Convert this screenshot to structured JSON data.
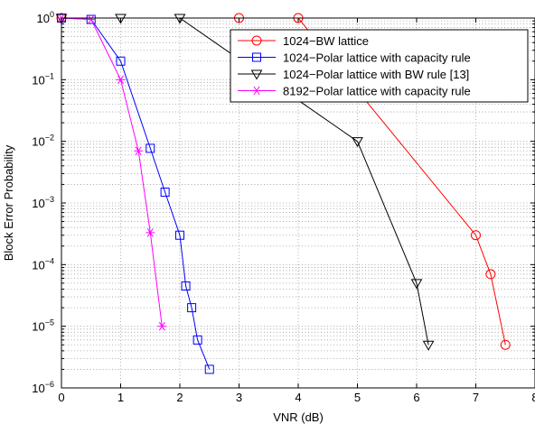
{
  "chart_data": {
    "type": "line",
    "title": "",
    "xlabel": "VNR (dB)",
    "ylabel": "Block Error Probability",
    "xlim": [
      0,
      8
    ],
    "ylim": [
      1e-06,
      1
    ],
    "yscale": "log",
    "grid": true,
    "legend_position": "top-right",
    "x_ticks": [
      "0",
      "1",
      "2",
      "3",
      "4",
      "5",
      "6",
      "7",
      "8"
    ],
    "y_ticks": [
      {
        "base": "10",
        "exp": "0",
        "value": 1
      },
      {
        "base": "10",
        "exp": "−1",
        "value": 0.1
      },
      {
        "base": "10",
        "exp": "−2",
        "value": 0.01
      },
      {
        "base": "10",
        "exp": "−3",
        "value": 0.001
      },
      {
        "base": "10",
        "exp": "−4",
        "value": 0.0001
      },
      {
        "base": "10",
        "exp": "−5",
        "value": 1e-05
      },
      {
        "base": "10",
        "exp": "−6",
        "value": 1e-06
      }
    ],
    "series": [
      {
        "name": "1024−BW lattice",
        "color": "#ff0000",
        "marker": "circle",
        "x": [
          0,
          3,
          4,
          7,
          7.25,
          7.5
        ],
        "y": [
          1,
          1,
          1,
          0.0003,
          7e-05,
          5e-06
        ]
      },
      {
        "name": "1024−Polar lattice with capacity rule",
        "color": "#0000ff",
        "marker": "square",
        "x": [
          0,
          0.5,
          1,
          1.5,
          1.75,
          2,
          2.1,
          2.2,
          2.3,
          2.5
        ],
        "y": [
          1,
          0.95,
          0.2,
          0.0077,
          0.0015,
          0.0003,
          4.5e-05,
          2e-05,
          6e-06,
          2e-06
        ]
      },
      {
        "name": "1024−Polar lattice with BW rule [13]",
        "color": "#000000",
        "marker": "triangle-down",
        "x": [
          0,
          1,
          2,
          5,
          6,
          6.2
        ],
        "y": [
          1,
          1,
          1,
          0.01,
          5e-05,
          5e-06
        ]
      },
      {
        "name": "8192−Polar lattice with capacity rule",
        "color": "#ff00ff",
        "marker": "asterisk",
        "x": [
          0,
          0.5,
          1,
          1.3,
          1.5,
          1.7
        ],
        "y": [
          1,
          0.95,
          0.1,
          0.007,
          0.00033,
          1e-05
        ]
      }
    ]
  }
}
